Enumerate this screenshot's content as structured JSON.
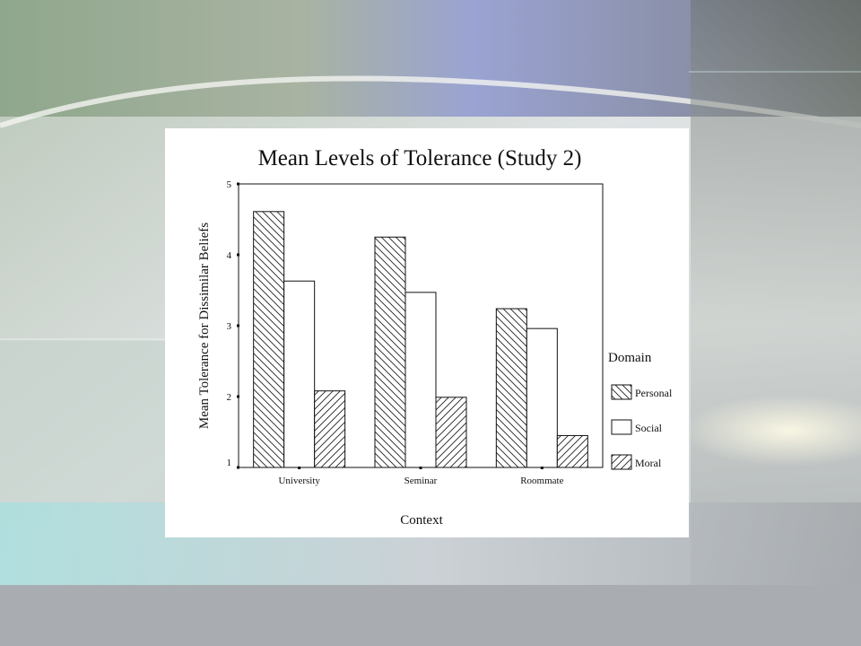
{
  "slide": {
    "colors": {
      "bg_light": "#e7ecec",
      "bg_green": "#8ea58c",
      "bg_blue": "#9aa3d2",
      "bg_dark": "#6d7370",
      "bg_cyan": "#a8dedd"
    }
  },
  "chart_data": {
    "type": "bar",
    "title": "Mean Levels of Tolerance (Study 2)",
    "xlabel": "Context",
    "ylabel": "Mean Tolerance for Dissimilar Beliefs",
    "ylim": [
      1,
      5
    ],
    "yticks": [
      "1",
      "2",
      "3",
      "4",
      "5"
    ],
    "categories": [
      "University",
      "Seminar",
      "Roommate"
    ],
    "legend_title": "Domain",
    "legend_position": "right",
    "grid": false,
    "series": [
      {
        "name": "Personal",
        "pattern": "back-diagonal-hatch",
        "values": [
          4.61,
          4.25,
          3.24
        ]
      },
      {
        "name": "Social",
        "pattern": "solid-white",
        "values": [
          3.63,
          3.47,
          2.96
        ]
      },
      {
        "name": "Moral",
        "pattern": "forward-diagonal-hatch",
        "values": [
          2.08,
          1.99,
          1.45
        ]
      }
    ]
  }
}
